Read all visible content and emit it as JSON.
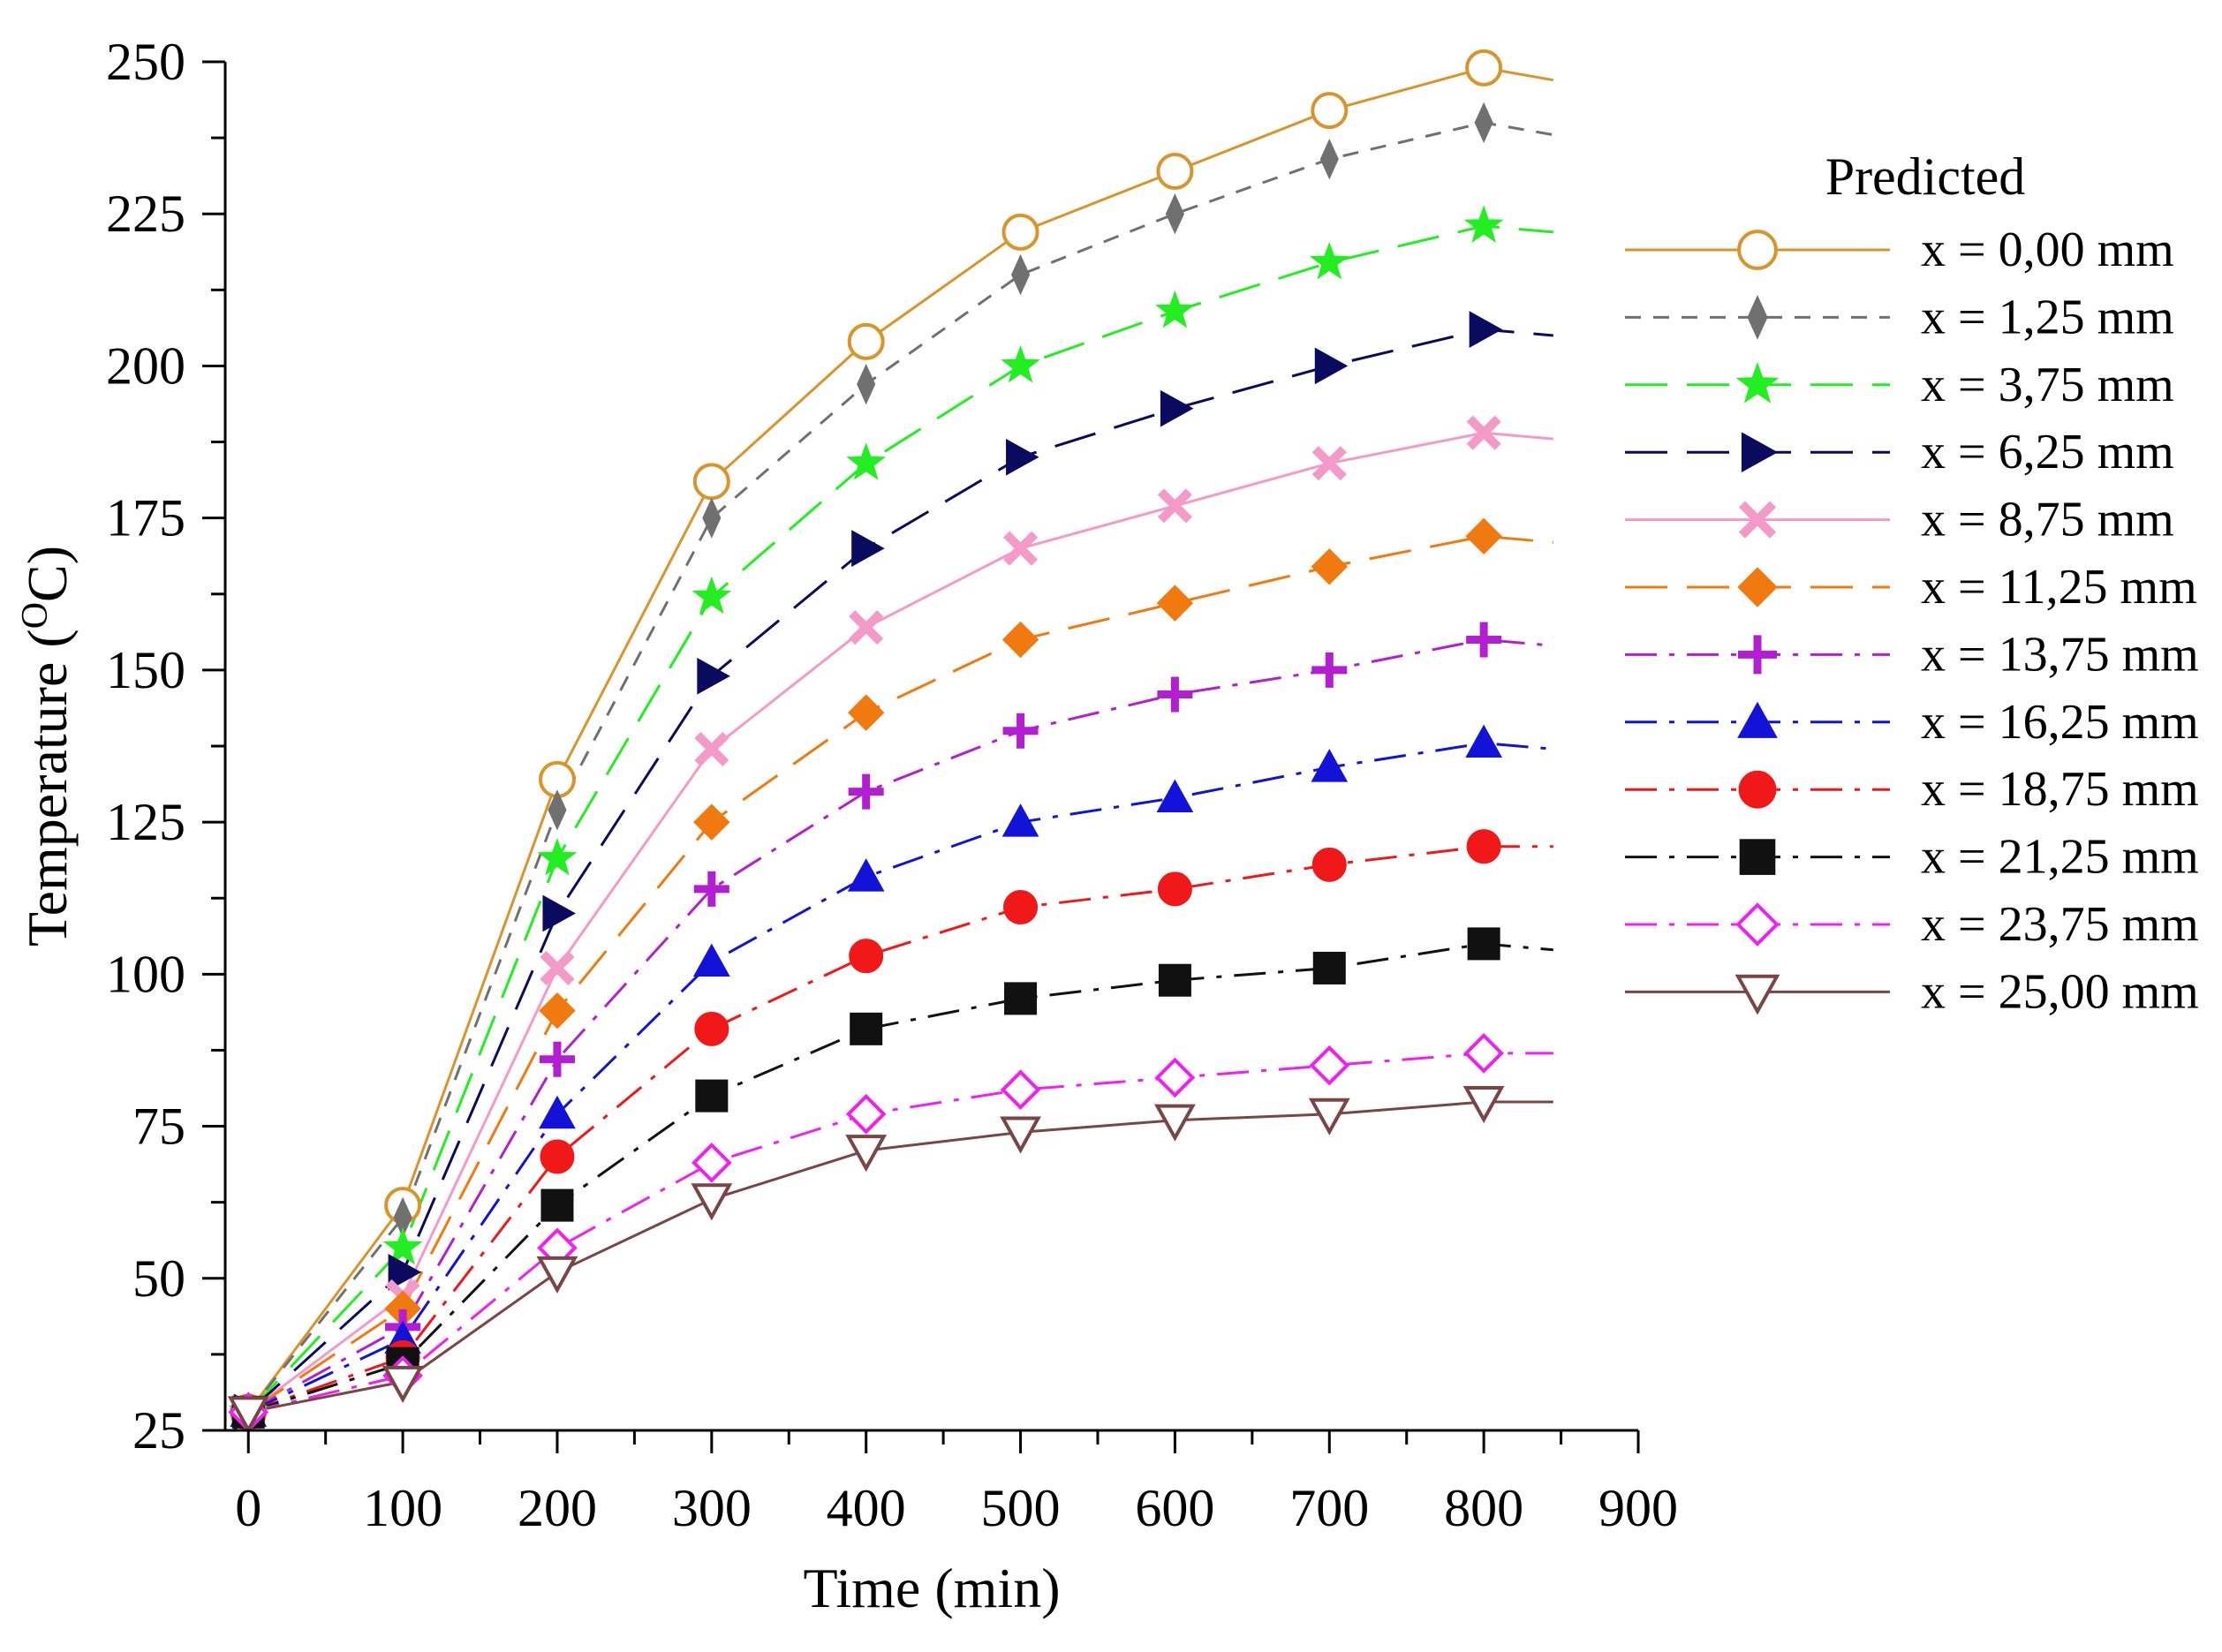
{
  "chart_data": {
    "type": "line",
    "title": "",
    "xlabel": "Time (min)",
    "ylabel_main": "Temperature (",
    "ylabel_sup": "O",
    "ylabel_end": "C)",
    "xlim": [
      -15,
      900
    ],
    "ylim": [
      25,
      250
    ],
    "xticks": [
      0,
      100,
      200,
      300,
      400,
      500,
      600,
      700,
      800,
      900
    ],
    "yticks": [
      25,
      50,
      75,
      100,
      125,
      150,
      175,
      200,
      225,
      250
    ],
    "legend_title": "Predicted",
    "legend_position": "right",
    "x": [
      0,
      100,
      200,
      300,
      400,
      500,
      600,
      700,
      800
    ],
    "series": [
      {
        "name": "x = 0,00 mm",
        "color": "#D9952B",
        "marker": "circle-open",
        "dash": "solid",
        "values": [
          28,
          62,
          132,
          181,
          204,
          222,
          232,
          242,
          249
        ],
        "end": 247
      },
      {
        "name": "x = 1,25 mm",
        "color": "#707070",
        "marker": "diamond-thin",
        "dash": "dash",
        "values": [
          28,
          60,
          127,
          175,
          197,
          215,
          225,
          234,
          240
        ],
        "end": 238
      },
      {
        "name": "x = 3,75 mm",
        "color": "#22EE22",
        "marker": "star",
        "dash": "longdash",
        "values": [
          28,
          55,
          119,
          162,
          184,
          200,
          209,
          217,
          223
        ],
        "end": 222
      },
      {
        "name": "x = 6,25 mm",
        "color": "#0A0A5E",
        "marker": "triangle-right",
        "dash": "longdash",
        "values": [
          28,
          51,
          110,
          149,
          170,
          185,
          193,
          200,
          206
        ],
        "end": 205
      },
      {
        "name": "x = 8,75 mm",
        "color": "#F49AC8",
        "marker": "x-thick",
        "dash": "solid",
        "values": [
          28,
          47,
          101,
          137,
          157,
          170,
          177,
          184,
          189
        ],
        "end": 188
      },
      {
        "name": "x = 11,25 mm",
        "color": "#F07A10",
        "marker": "diamond",
        "dash": "longdash",
        "values": [
          28,
          45,
          94,
          125,
          143,
          155,
          161,
          167,
          172
        ],
        "end": 171
      },
      {
        "name": "x = 13,75 mm",
        "color": "#B21FD0",
        "marker": "plus",
        "dash": "dashdot",
        "values": [
          28,
          42,
          86,
          114,
          130,
          140,
          146,
          150,
          155
        ],
        "end": 154
      },
      {
        "name": "x = 16,25 mm",
        "color": "#1212D8",
        "marker": "triangle-up",
        "dash": "dashdot",
        "values": [
          28,
          40,
          77,
          102,
          116,
          125,
          129,
          134,
          138
        ],
        "end": 137
      },
      {
        "name": "x = 18,75 mm",
        "color": "#F01818",
        "marker": "circle",
        "dash": "dashdot",
        "values": [
          28,
          37,
          70,
          91,
          103,
          111,
          114,
          118,
          121
        ],
        "end": 121
      },
      {
        "name": "x = 21,25 mm",
        "color": "#111111",
        "marker": "square",
        "dash": "dashdot",
        "values": [
          28,
          36,
          62,
          80,
          91,
          96,
          99,
          101,
          105
        ],
        "end": 104
      },
      {
        "name": "x = 23,75 mm",
        "color": "#F020F0",
        "marker": "diamond-open",
        "dash": "dashdot",
        "values": [
          28,
          34,
          55,
          69,
          77,
          81,
          83,
          85,
          87
        ],
        "end": 87
      },
      {
        "name": "x = 25,00 mm",
        "color": "#7A4545",
        "marker": "triangle-down-open",
        "dash": "solid",
        "values": [
          28,
          33,
          51,
          63,
          71,
          74,
          76,
          77,
          79
        ],
        "end": 79
      }
    ]
  }
}
